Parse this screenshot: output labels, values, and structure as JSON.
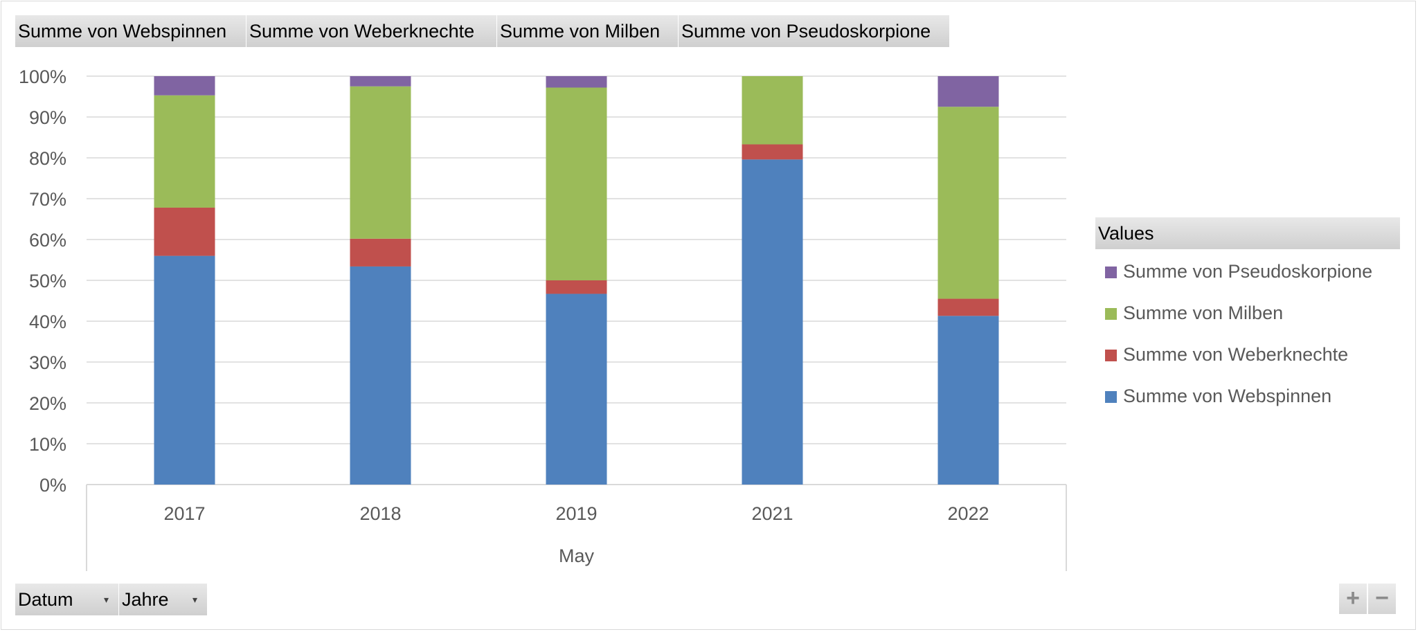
{
  "value_fields": [
    "Summe von Webspinnen",
    "Summe von Weberknechte",
    "Summe von Milben",
    "Summe von Pseudoskorpione"
  ],
  "axis_fields": [
    "Datum",
    "Jahre"
  ],
  "legend": {
    "header": "Values",
    "items": [
      {
        "label": "Summe von Pseudoskorpione",
        "color": "#8064a2"
      },
      {
        "label": "Summe von Milben",
        "color": "#9bbb59"
      },
      {
        "label": "Summe von Weberknechte",
        "color": "#c0504d"
      },
      {
        "label": "Summe von Webspinnen",
        "color": "#4f81bd"
      }
    ]
  },
  "zoom": {
    "plus": "+",
    "minus": "−"
  },
  "chart_data": {
    "type": "bar",
    "stacked": "percent",
    "categories": [
      "2017",
      "2018",
      "2019",
      "2021",
      "2022"
    ],
    "group_label": "May",
    "y_ticks": [
      "0%",
      "10%",
      "20%",
      "30%",
      "40%",
      "50%",
      "60%",
      "70%",
      "80%",
      "90%",
      "100%"
    ],
    "ylim": [
      0,
      100
    ],
    "grid": true,
    "legend_position": "right",
    "series": [
      {
        "name": "Summe von Webspinnen",
        "color": "#4f81bd",
        "values": [
          56,
          53.4,
          46.7,
          79.6,
          41.3
        ]
      },
      {
        "name": "Summe von Weberknechte",
        "color": "#c0504d",
        "values": [
          11.8,
          6.8,
          3.3,
          3.7,
          4.2
        ]
      },
      {
        "name": "Summe von Milben",
        "color": "#9bbb59",
        "values": [
          27.5,
          37.3,
          47.2,
          16.7,
          47
        ]
      },
      {
        "name": "Summe von Pseudoskorpione",
        "color": "#8064a2",
        "values": [
          4.7,
          2.5,
          2.8,
          0,
          7.5
        ]
      }
    ]
  }
}
